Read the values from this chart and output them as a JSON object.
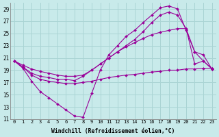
{
  "xlabel": "Windchill (Refroidissement éolien,°C)",
  "ylabel": "",
  "bg_color": "#c8eaea",
  "grid_color": "#aad4d4",
  "line_color": "#990099",
  "xlim": [
    -0.5,
    23.5
  ],
  "ylim": [
    11,
    30
  ],
  "yticks": [
    11,
    13,
    15,
    17,
    19,
    21,
    23,
    25,
    27,
    29
  ],
  "xticks": [
    0,
    1,
    2,
    3,
    4,
    5,
    6,
    7,
    8,
    9,
    10,
    11,
    12,
    13,
    14,
    15,
    16,
    17,
    18,
    19,
    20,
    21,
    22,
    23
  ],
  "series": [
    {
      "x": [
        0,
        1,
        2,
        3,
        4,
        5,
        6,
        7,
        8,
        9,
        10,
        11,
        12,
        13,
        14,
        15,
        16,
        17,
        18,
        19,
        20,
        21,
        22,
        23
      ],
      "y": [
        20.5,
        19.3,
        17.2,
        15.5,
        14.5,
        13.5,
        12.5,
        11.5,
        11.3,
        15.2,
        19.0,
        21.5,
        23.0,
        24.5,
        25.5,
        26.8,
        28.0,
        29.2,
        29.5,
        29.0,
        25.5,
        22.0,
        20.5,
        19.2
      ]
    },
    {
      "x": [
        0,
        1,
        2,
        3,
        4,
        5,
        6,
        7,
        8,
        9,
        10,
        11,
        12,
        13,
        14,
        15,
        16,
        17,
        18,
        19,
        20,
        21,
        22,
        23
      ],
      "y": [
        20.5,
        19.5,
        18.5,
        18.0,
        17.8,
        17.5,
        17.5,
        17.3,
        18.0,
        19.0,
        20.0,
        21.0,
        22.0,
        23.0,
        24.0,
        25.3,
        26.8,
        28.0,
        28.5,
        28.0,
        25.8,
        20.0,
        20.5,
        19.3
      ]
    },
    {
      "x": [
        0,
        1,
        2,
        3,
        4,
        5,
        6,
        7,
        8,
        9,
        10,
        11,
        12,
        13,
        14,
        15,
        16,
        17,
        18,
        19,
        20,
        21,
        22,
        23
      ],
      "y": [
        20.5,
        19.8,
        19.2,
        18.8,
        18.5,
        18.2,
        18.0,
        18.0,
        18.2,
        19.0,
        20.0,
        21.0,
        22.0,
        22.8,
        23.5,
        24.2,
        24.8,
        25.2,
        25.5,
        25.8,
        25.8,
        22.0,
        21.5,
        19.2
      ]
    },
    {
      "x": [
        0,
        1,
        2,
        3,
        4,
        5,
        6,
        7,
        8,
        9,
        10,
        11,
        12,
        13,
        14,
        15,
        16,
        17,
        18,
        19,
        20,
        21,
        22,
        23
      ],
      "y": [
        20.5,
        19.5,
        18.2,
        17.5,
        17.2,
        17.0,
        16.8,
        16.8,
        17.0,
        17.2,
        17.5,
        17.8,
        18.0,
        18.2,
        18.3,
        18.5,
        18.7,
        18.8,
        19.0,
        19.0,
        19.2,
        19.2,
        19.3,
        19.3
      ]
    }
  ]
}
